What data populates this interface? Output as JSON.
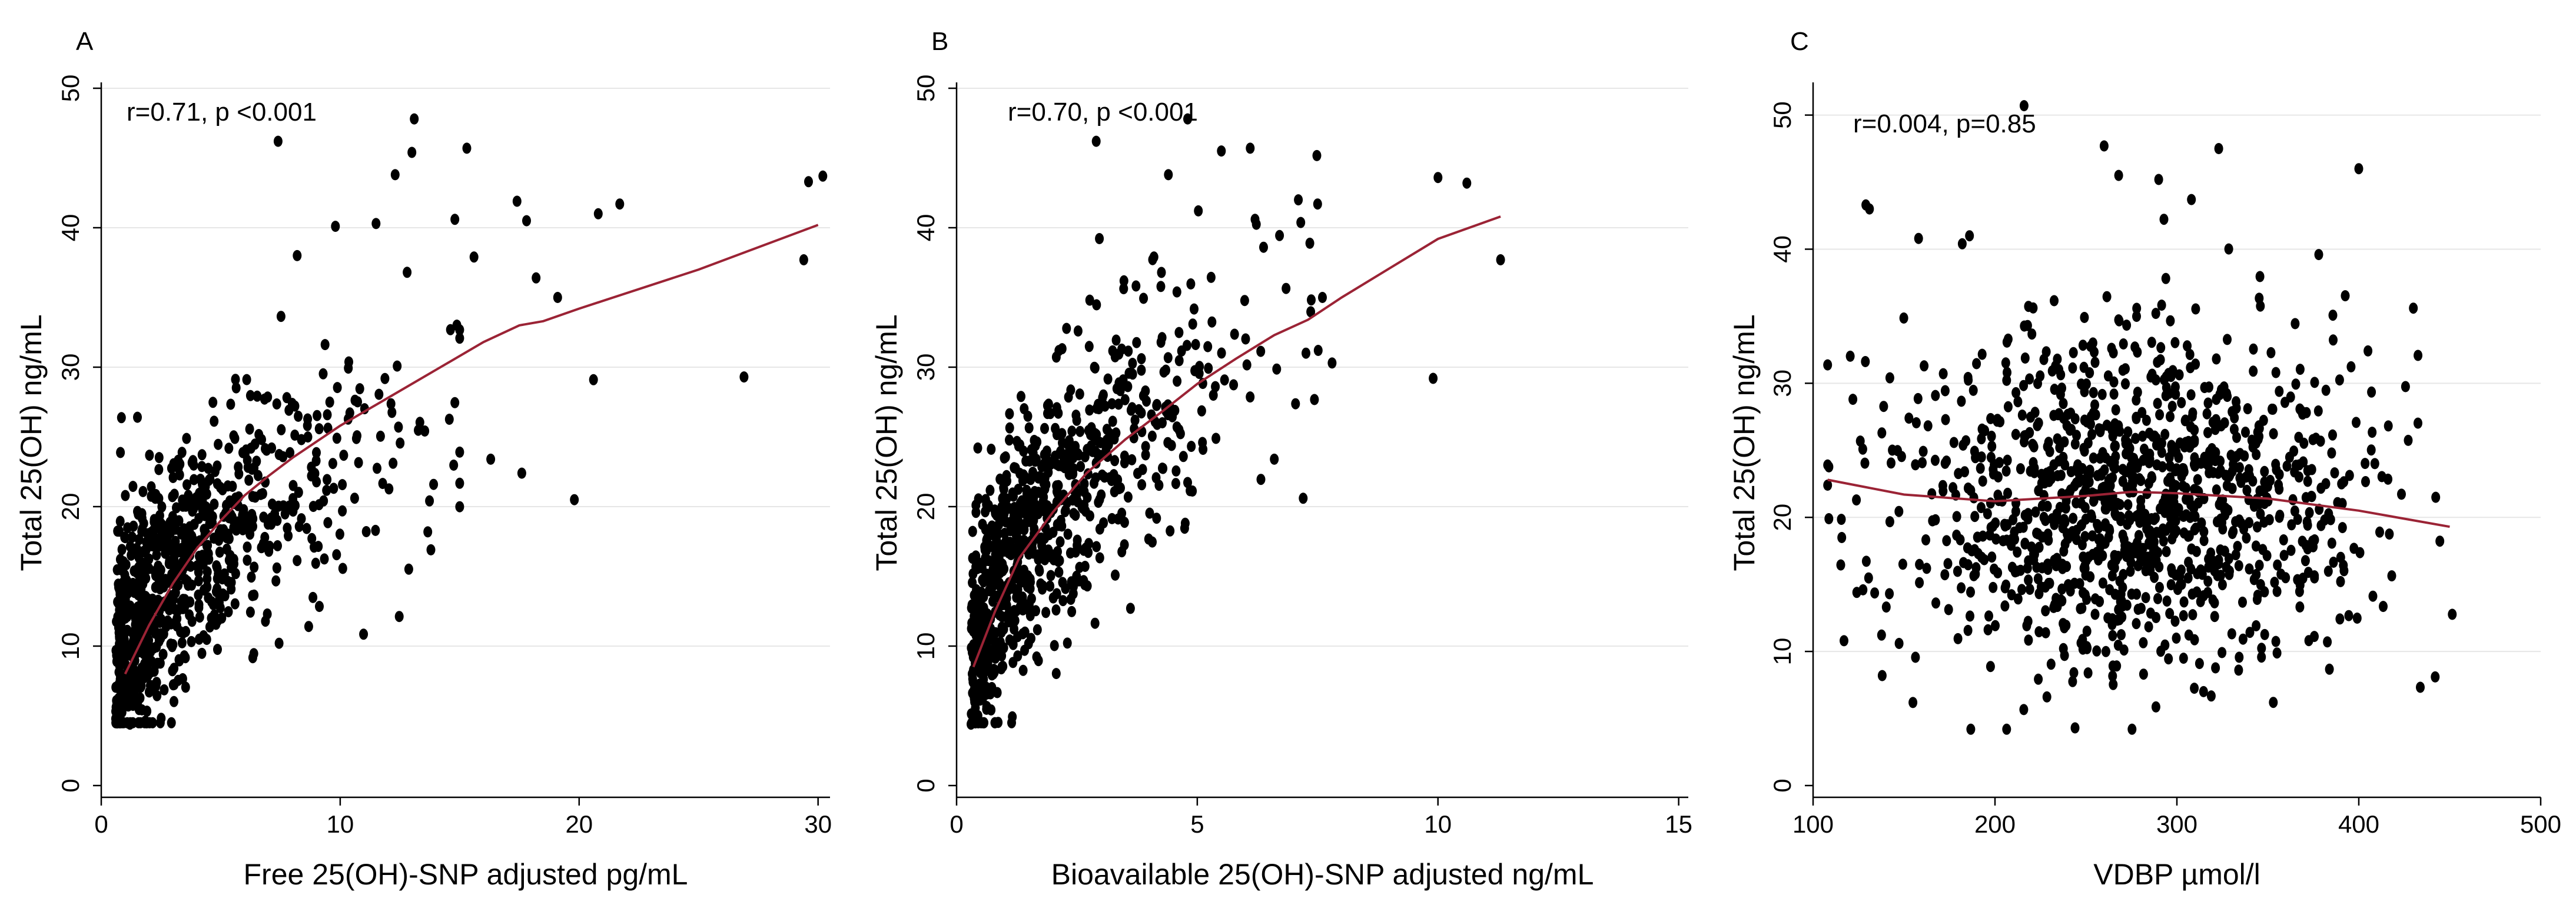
{
  "colors": {
    "points": "#000000",
    "fit_line": "#9B2335",
    "gridline": "#E6E6E6",
    "axis": "#000000"
  },
  "chart_data": [
    {
      "type": "scatter",
      "panel": "A",
      "xlabel": "Free 25(OH)-SNP adjusted pg/mL",
      "ylabel": "Total 25(OH) ng/mL",
      "xlim": [
        0,
        30.5
      ],
      "ylim": [
        0,
        50
      ],
      "xticks": [
        0,
        10,
        20,
        30
      ],
      "yticks": [
        0,
        10,
        20,
        30,
        40,
        50
      ],
      "grid": true,
      "annotation": "r=0.71, p <0.001",
      "fit_line": {
        "name": "lowess",
        "x": [
          1,
          2,
          3,
          4,
          5,
          6,
          7,
          8,
          10,
          12,
          14,
          16,
          17.5,
          18.5,
          20,
          25,
          30
        ],
        "y": [
          8,
          11.5,
          14.5,
          17,
          19,
          20.8,
          22.2,
          23.5,
          25.8,
          27.8,
          29.8,
          31.8,
          33,
          33.3,
          34.2,
          37,
          40.2
        ]
      },
      "cloud": {
        "n": 850,
        "x_range": [
          0.6,
          15
        ],
        "x_scale": 3.5,
        "y_intercept": 8,
        "y_slope": 19,
        "y_pow": 0.55,
        "y_sd": 4.6,
        "seed": 11
      },
      "outliers": {
        "x": [
          1.2,
          7.4,
          12.3,
          13.1,
          15.3,
          17.4,
          17.8,
          19.1,
          20.6,
          21.7,
          26.9,
          29.4,
          29.6,
          30.2,
          19.8,
          20.8,
          17.6,
          16.3,
          18.2,
          15.6,
          13.0,
          8.2,
          14.8,
          11.5,
          12.8,
          9.8
        ],
        "y": [
          4.4,
          46.2,
          43.8,
          47.8,
          45.7,
          41.9,
          40.5,
          35.0,
          29.1,
          41.7,
          29.3,
          37.7,
          43.3,
          43.7,
          20.5,
          41.0,
          22.4,
          23.4,
          36.4,
          37.9,
          45.4,
          38.0,
          40.6,
          40.3,
          36.8,
          40.1
        ]
      }
    },
    {
      "type": "scatter",
      "panel": "B",
      "xlabel": "Bioavailable 25(OH)-SNP adjusted ng/mL",
      "ylabel": "Total 25(OH) ng/mL",
      "xlim": [
        0,
        15.2
      ],
      "ylim": [
        0,
        50
      ],
      "xticks": [
        0,
        5,
        10,
        15
      ],
      "yticks": [
        0,
        10,
        20,
        30,
        40,
        50
      ],
      "grid": true,
      "annotation": "r=0.70, p <0.001",
      "fit_line": {
        "name": "lowess",
        "x": [
          0.35,
          0.8,
          1.3,
          2,
          2.7,
          3.5,
          4.3,
          5,
          5.8,
          6.6,
          7.3,
          8,
          9,
          10,
          11.3
        ],
        "y": [
          8.5,
          12.5,
          16.3,
          19.6,
          22.4,
          24.8,
          26.9,
          28.8,
          30.6,
          32.3,
          33.4,
          35,
          37.1,
          39.2,
          40.8
        ]
      },
      "cloud": {
        "n": 850,
        "x_range": [
          0.3,
          7.6
        ],
        "x_scale": 1.75,
        "y_intercept": 8,
        "y_slope": 27,
        "y_pow": 0.55,
        "y_sd": 4.6,
        "seed": 23
      },
      "outliers": {
        "x": [
          0.3,
          2.9,
          4.4,
          4.8,
          5.5,
          6.1,
          7.1,
          7.5,
          7.6,
          7.8,
          9.9,
          10.0,
          10.6,
          11.3,
          7.2,
          6.6,
          6.2,
          4.1
        ],
        "y": [
          4.4,
          46.2,
          43.8,
          47.8,
          45.5,
          45.7,
          42.0,
          41.7,
          35.0,
          30.3,
          29.2,
          43.6,
          43.2,
          37.7,
          20.6,
          23.4,
          40.6,
          37.9
        ]
      }
    },
    {
      "type": "scatter",
      "panel": "C",
      "xlabel": "VDBP µmol/l",
      "ylabel": "Total 25(OH) ng/mL",
      "xlim": [
        100,
        500
      ],
      "ylim": [
        0,
        52
      ],
      "xticks": [
        100,
        200,
        300,
        400,
        500
      ],
      "yticks": [
        0,
        10,
        20,
        30,
        40,
        50
      ],
      "grid": true,
      "annotation": "r=0.004, p=0.85",
      "fit_line": {
        "name": "lowess",
        "x": [
          108,
          150,
          200,
          250,
          275,
          300,
          350,
          400,
          450
        ],
        "y": [
          22.8,
          21.7,
          21.2,
          21.6,
          21.9,
          21.8,
          21.4,
          20.5,
          19.3
        ]
      },
      "cloud": {
        "n": 1150,
        "x_center": 275,
        "x_sd": 62,
        "x_range": [
          108,
          452
        ],
        "y_center": 21.4,
        "y_sd": 6.2,
        "y_range": [
          4.2,
          45
        ],
        "seed": 37
      },
      "outliers": {
        "x": [
          216,
          129,
          131,
          158,
          182,
          186,
          260,
          268,
          323,
          290,
          308,
          400,
          430,
          442,
          117,
          124,
          138,
          244,
          353,
          378
        ],
        "y": [
          50.7,
          43.3,
          43.0,
          40.8,
          40.4,
          41.0,
          47.7,
          45.5,
          47.5,
          45.2,
          43.7,
          46.0,
          35.6,
          8.1,
          10.8,
          14.4,
          8.2,
          4.3,
          6.2,
          39.6
        ]
      }
    }
  ]
}
